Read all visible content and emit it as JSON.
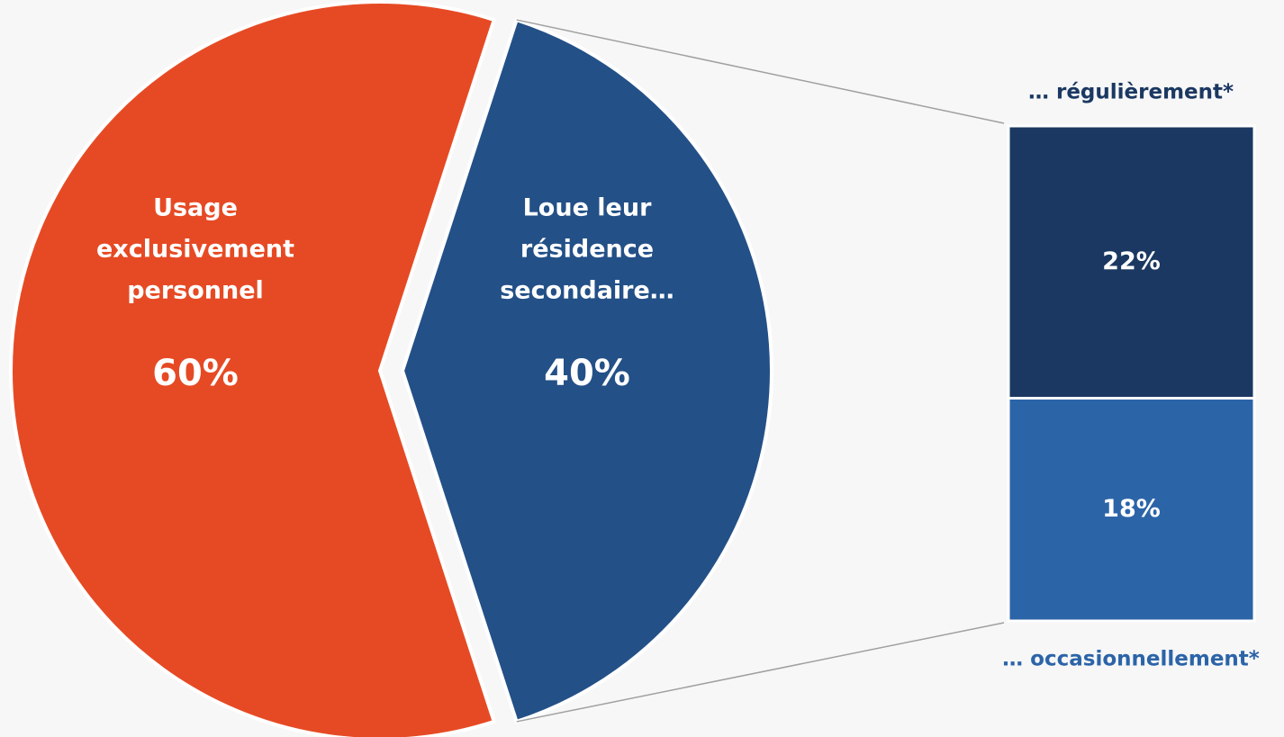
{
  "chart_data": {
    "type": "pie",
    "labels": [
      [
        "Usage",
        "exclusivement",
        "personnel"
      ],
      [
        "Loue leur",
        "résidence",
        "secondaire…"
      ]
    ],
    "values": [
      60,
      40
    ],
    "value_labels": [
      "60%",
      "40%"
    ],
    "colors": [
      "#e64a24",
      "#235087"
    ],
    "breakdown": {
      "labels": [
        "… régulièrement*",
        "… occasionnellement*"
      ],
      "values": [
        22,
        18
      ],
      "value_labels": [
        "22%",
        "18%"
      ],
      "colors": [
        "#1b3862",
        "#2c64a8"
      ]
    }
  }
}
